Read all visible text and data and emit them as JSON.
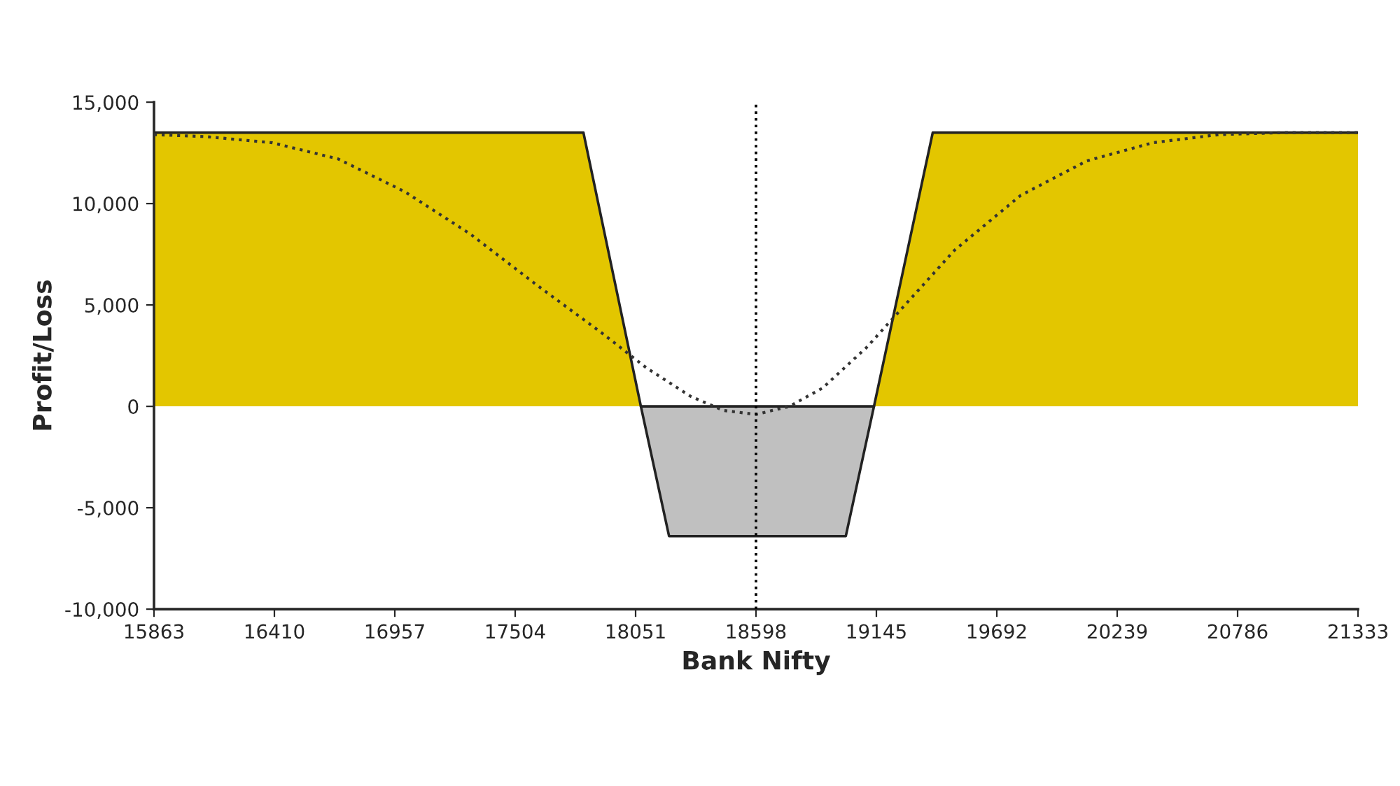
{
  "chart_data": {
    "type": "area",
    "xlabel": "Bank Nifty",
    "ylabel": "Profit/Loss",
    "xlim": [
      15863,
      21333
    ],
    "xticks": [
      15863,
      16410,
      16957,
      17504,
      18051,
      18598,
      19145,
      19692,
      20239,
      20786,
      21333
    ],
    "ylim": [
      -10000,
      15000
    ],
    "yticks": [
      {
        "value": -10000,
        "label": "-10,000"
      },
      {
        "value": -5000,
        "label": "-5,000"
      },
      0,
      {
        "value": 5000,
        "label": "5,000"
      },
      {
        "value": 10000,
        "label": "10,000"
      },
      {
        "value": 15000,
        "label": "15,000"
      }
    ],
    "grid": false,
    "series": [
      {
        "color": "#e3c600",
        "x": [
          15863,
          17814,
          18075,
          19134,
          19401,
          21333
        ],
        "values": [
          13500,
          13500,
          0,
          0,
          13500,
          13500
        ]
      },
      {
        "color": "#c0c0c0",
        "x": [
          18075,
          18203,
          19006,
          19134
        ],
        "values": [
          0,
          -6400,
          -6400,
          0
        ]
      },
      {
        "type": "line",
        "color": "#333333",
        "line_style": "dotted",
        "x": [
          15863,
          16100,
          16400,
          16700,
          17000,
          17300,
          17600,
          17900,
          18100,
          18300,
          18450,
          18598,
          18750,
          18900,
          19100,
          19300,
          19500,
          19800,
          20100,
          20400,
          20700,
          21000,
          21333
        ],
        "values": [
          13400,
          13300,
          13000,
          12200,
          10600,
          8500,
          6000,
          3600,
          1900,
          500,
          -200,
          -400,
          0,
          900,
          2900,
          5300,
          7700,
          10400,
          12100,
          13000,
          13400,
          13500,
          13500
        ]
      }
    ],
    "ref_lines": [
      {
        "axis": "x",
        "value": 18598,
        "color": "#000000",
        "line_style": "dotted"
      }
    ]
  }
}
